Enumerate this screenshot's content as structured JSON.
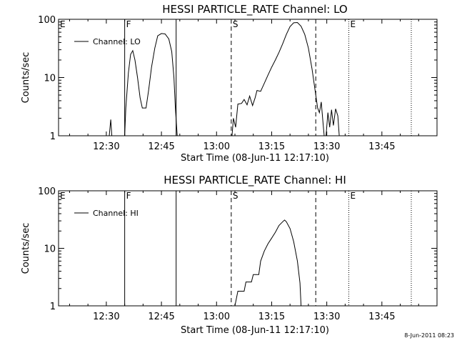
{
  "footer": {
    "stamp": "8-Jun-2011 08:23"
  },
  "chart_data": [
    {
      "type": "line",
      "title": "HESSI PARTICLE_RATE Channel: LO",
      "xlabel": "Start Time (08-Jun-11 12:17:10)",
      "ylabel": "Counts/sec",
      "y_scale": "log",
      "ylim": [
        1,
        100
      ],
      "xlim": [
        "12:17",
        "14:00"
      ],
      "x_ticks": [
        "12:30",
        "12:45",
        "13:00",
        "13:15",
        "13:30",
        "13:45"
      ],
      "y_ticks": [
        "1",
        "10",
        "100"
      ],
      "legend": {
        "position": "top-left",
        "entries": [
          "Channel: LO"
        ]
      },
      "markers": [
        {
          "label": "E",
          "time": "12:17",
          "style": "dotted"
        },
        {
          "label": "F",
          "time": "12:35",
          "style": "solid"
        },
        {
          "label": "",
          "time": "12:49",
          "style": "solid"
        },
        {
          "label": "S",
          "time": "13:04",
          "style": "dashed"
        },
        {
          "label": "",
          "time": "13:27",
          "style": "dashed"
        },
        {
          "label": "E",
          "time": "13:36",
          "style": "dotted"
        },
        {
          "label": "",
          "time": "13:53",
          "style": "dotted"
        }
      ],
      "series": [
        {
          "name": "Channel: LO",
          "segments": [
            [
              [
                "12:30.8",
                1
              ],
              [
                "12:31.2",
                1.9
              ],
              [
                "12:31.5",
                1
              ]
            ],
            [
              [
                "12:35.0",
                1
              ],
              [
                "12:35.3",
                3
              ],
              [
                "12:36.0",
                12
              ],
              [
                "12:36.6",
                25
              ],
              [
                "12:37.2",
                29
              ],
              [
                "12:37.8",
                20
              ],
              [
                "12:38.5",
                10
              ],
              [
                "12:39.2",
                4.5
              ],
              [
                "12:39.8",
                3
              ],
              [
                "12:40.8",
                3
              ],
              [
                "12:41.5",
                6
              ],
              [
                "12:42.3",
                15
              ],
              [
                "12:43.2",
                32
              ],
              [
                "12:44.0",
                52
              ],
              [
                "12:45.0",
                57
              ],
              [
                "12:46.0",
                56
              ],
              [
                "12:47.0",
                46
              ],
              [
                "12:47.8",
                28
              ],
              [
                "12:48.4",
                10
              ],
              [
                "12:48.8",
                3
              ],
              [
                "12:49.3",
                1
              ]
            ],
            [
              [
                "13:04.2",
                1
              ],
              [
                "13:04.6",
                2
              ],
              [
                "13:05.2",
                1.4
              ],
              [
                "13:05.8",
                3.5
              ],
              [
                "13:06.8",
                3.6
              ],
              [
                "13:07.5",
                4.2
              ],
              [
                "13:08.3",
                3.4
              ],
              [
                "13:09.0",
                4.8
              ],
              [
                "13:09.8",
                3.3
              ],
              [
                "13:10.5",
                4.5
              ],
              [
                "13:11.0",
                6
              ],
              [
                "13:12.0",
                5.8
              ],
              [
                "13:13.0",
                8
              ],
              [
                "13:14.0",
                11
              ],
              [
                "13:15.0",
                15
              ],
              [
                "13:16.0",
                20
              ],
              [
                "13:17.0",
                27
              ],
              [
                "13:18.0",
                38
              ],
              [
                "13:19.0",
                55
              ],
              [
                "13:20.0",
                75
              ],
              [
                "13:21.0",
                87
              ],
              [
                "13:22.0",
                88
              ],
              [
                "13:23.0",
                76
              ],
              [
                "13:24.0",
                55
              ],
              [
                "13:25.0",
                32
              ],
              [
                "13:26.0",
                14
              ],
              [
                "13:27.0",
                5
              ],
              [
                "13:27.5",
                3
              ],
              [
                "13:28.0",
                2.5
              ],
              [
                "13:28.5",
                3.8
              ],
              [
                "13:29.0",
                1.6
              ],
              [
                "13:29.3",
                1
              ]
            ],
            [
              [
                "13:29.8",
                1
              ],
              [
                "13:30.3",
                2.5
              ],
              [
                "13:30.8",
                1.4
              ],
              [
                "13:31.3",
                2.8
              ],
              [
                "13:31.8",
                1.5
              ],
              [
                "13:32.4",
                2.9
              ],
              [
                "13:33.0",
                2.2
              ],
              [
                "13:33.4",
                1
              ]
            ]
          ]
        }
      ]
    },
    {
      "type": "line",
      "title": "HESSI PARTICLE_RATE Channel: HI",
      "xlabel": "Start Time (08-Jun-11 12:17:10)",
      "ylabel": "Counts/sec",
      "y_scale": "log",
      "ylim": [
        1,
        100
      ],
      "xlim": [
        "12:17",
        "14:00"
      ],
      "x_ticks": [
        "12:30",
        "12:45",
        "13:00",
        "13:15",
        "13:30",
        "13:45"
      ],
      "y_ticks": [
        "1",
        "10",
        "100"
      ],
      "legend": {
        "position": "top-left",
        "entries": [
          "Channel: HI"
        ]
      },
      "markers": [
        {
          "label": "E",
          "time": "12:17",
          "style": "dotted"
        },
        {
          "label": "F",
          "time": "12:35",
          "style": "solid"
        },
        {
          "label": "",
          "time": "12:49",
          "style": "solid"
        },
        {
          "label": "S",
          "time": "13:04",
          "style": "dashed"
        },
        {
          "label": "",
          "time": "13:27",
          "style": "dashed"
        },
        {
          "label": "E",
          "time": "13:36",
          "style": "dotted"
        },
        {
          "label": "",
          "time": "13:53",
          "style": "dotted"
        }
      ],
      "series": [
        {
          "name": "Channel: HI",
          "segments": [
            [
              [
                "13:05.0",
                1
              ],
              [
                "13:05.8",
                1.8
              ],
              [
                "13:07.5",
                1.8
              ],
              [
                "13:08.0",
                2.6
              ],
              [
                "13:09.5",
                2.6
              ],
              [
                "13:10.0",
                3.5
              ],
              [
                "13:11.5",
                3.5
              ],
              [
                "13:12.0",
                6
              ],
              [
                "13:13.0",
                9
              ],
              [
                "13:14.0",
                12
              ],
              [
                "13:15.0",
                15
              ],
              [
                "13:16.0",
                19
              ],
              [
                "13:17.0",
                25
              ],
              [
                "13:18.0",
                29
              ],
              [
                "13:18.5",
                31
              ],
              [
                "13:19.0",
                29
              ],
              [
                "13:20.0",
                22
              ],
              [
                "13:21.0",
                13
              ],
              [
                "13:22.0",
                6
              ],
              [
                "13:22.7",
                2.5
              ],
              [
                "13:23.0",
                1
              ]
            ]
          ]
        }
      ]
    }
  ]
}
